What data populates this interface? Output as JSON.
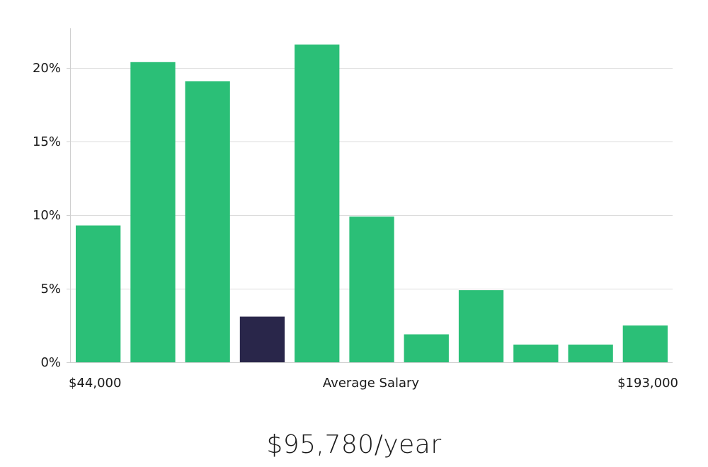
{
  "chart_data": {
    "type": "bar",
    "categories": [
      "",
      "",
      "",
      "",
      "",
      "",
      "",
      "",
      "",
      "",
      ""
    ],
    "values": [
      9.3,
      20.4,
      19.1,
      3.1,
      21.6,
      9.9,
      1.9,
      4.9,
      1.2,
      1.2,
      2.5
    ],
    "highlight_index": 3,
    "ylim": [
      0,
      22.7
    ],
    "yticks": [
      0,
      5,
      10,
      15,
      20
    ],
    "ytick_labels": [
      "0%",
      "5%",
      "10%",
      "15%",
      "20%"
    ],
    "x_min_label": "$44,000",
    "x_center_label": "Average Salary",
    "x_max_label": "$193,000",
    "grid": true,
    "colors": {
      "bar": "#2bbf77",
      "highlight": "#29264a",
      "grid": "#dcdcdc",
      "axis": "#cfcfcf"
    }
  },
  "summary": {
    "salary": "$95,780/year"
  }
}
